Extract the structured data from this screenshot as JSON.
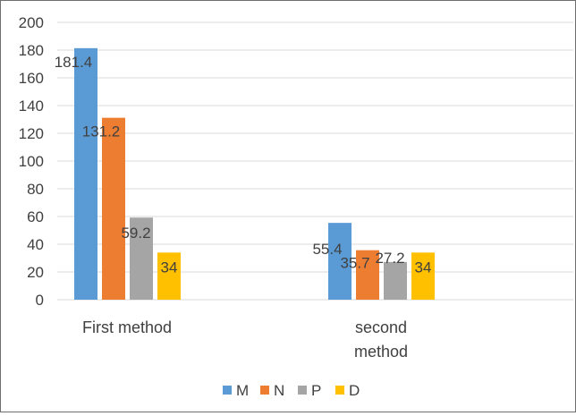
{
  "chart_data": {
    "type": "bar",
    "categories": [
      "First method",
      "second\nmethod"
    ],
    "series": [
      {
        "name": "M",
        "color": "#5b9bd5",
        "values": [
          181.4,
          55.4
        ]
      },
      {
        "name": "N",
        "color": "#ed7d31",
        "values": [
          131.2,
          35.7
        ]
      },
      {
        "name": "P",
        "color": "#a5a5a5",
        "values": [
          59.2,
          27.2
        ]
      },
      {
        "name": "D",
        "color": "#ffc000",
        "values": [
          34,
          34
        ]
      }
    ],
    "y_ticks": [
      0,
      20,
      40,
      60,
      80,
      100,
      120,
      140,
      160,
      180,
      200
    ],
    "ylim": [
      0,
      200
    ],
    "grid": true,
    "legend_position": "bottom",
    "data_labels": true
  }
}
